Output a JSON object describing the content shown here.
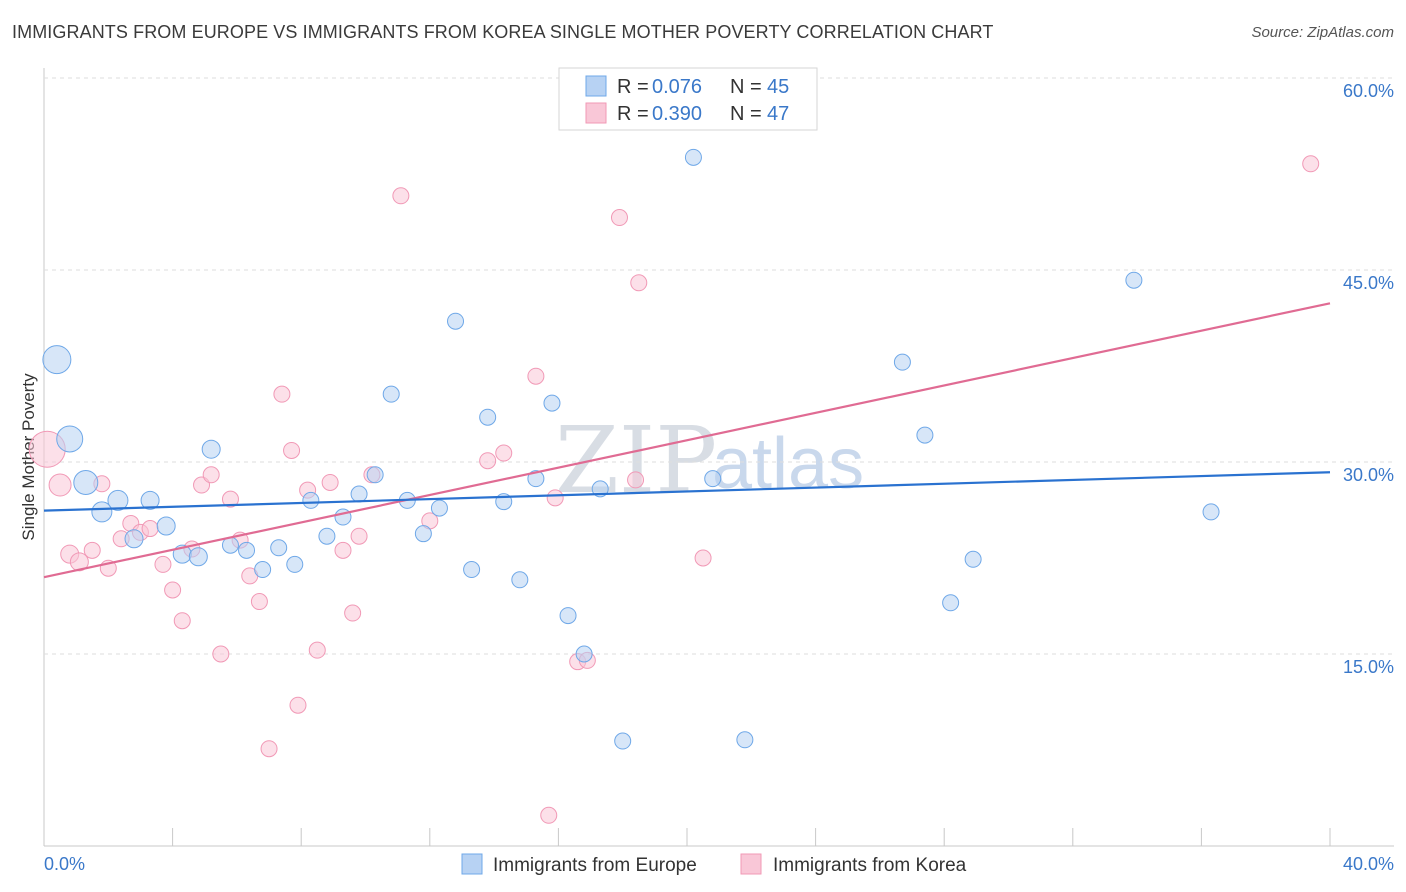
{
  "header": {
    "title": "IMMIGRANTS FROM EUROPE VS IMMIGRANTS FROM KOREA SINGLE MOTHER POVERTY CORRELATION CHART",
    "source": "Source: ZipAtlas.com"
  },
  "legend": {
    "r_label": "R =",
    "n_label": "N =",
    "europe": {
      "r": "0.076",
      "n": "45"
    },
    "korea": {
      "r": "0.390",
      "n": "47"
    }
  },
  "watermark": {
    "part1": "ZIP",
    "part2": "atlas"
  },
  "chart_data": {
    "type": "scatter",
    "title": "IMMIGRANTS FROM EUROPE VS IMMIGRANTS FROM KOREA SINGLE MOTHER POVERTY CORRELATION CHART",
    "ylabel": "Single Mother Poverty",
    "xlabel": "",
    "xlim": [
      0,
      40
    ],
    "ylim": [
      0,
      60
    ],
    "x_tick_labels": [
      "0.0%",
      "40.0%"
    ],
    "y_tick_labels": [
      "15.0%",
      "30.0%",
      "45.0%",
      "60.0%"
    ],
    "y_ticks": [
      15,
      30,
      45,
      60
    ],
    "grid": "horizontal dashed",
    "legend_position": "top-center",
    "colors": {
      "europe": "#6fa8e8",
      "korea": "#f199b6",
      "europe_line": "#2a72d0",
      "korea_line": "#e06b93"
    },
    "series": [
      {
        "name": "Immigrants from Europe",
        "trend": {
          "x": [
            0,
            40
          ],
          "y": [
            26.2,
            29.2
          ]
        },
        "points": [
          {
            "x": 0.4,
            "y": 38.0,
            "s": 14
          },
          {
            "x": 0.8,
            "y": 31.8,
            "s": 13
          },
          {
            "x": 1.3,
            "y": 28.4,
            "s": 12
          },
          {
            "x": 1.8,
            "y": 26.1,
            "s": 10
          },
          {
            "x": 2.3,
            "y": 27.0,
            "s": 10
          },
          {
            "x": 2.8,
            "y": 24.0,
            "s": 9
          },
          {
            "x": 3.3,
            "y": 27.0,
            "s": 9
          },
          {
            "x": 3.8,
            "y": 25.0,
            "s": 9
          },
          {
            "x": 4.3,
            "y": 22.8,
            "s": 9
          },
          {
            "x": 4.8,
            "y": 22.6,
            "s": 9
          },
          {
            "x": 5.2,
            "y": 31.0,
            "s": 9
          },
          {
            "x": 5.8,
            "y": 23.5,
            "s": 8
          },
          {
            "x": 6.3,
            "y": 23.1,
            "s": 8
          },
          {
            "x": 6.8,
            "y": 21.6,
            "s": 8
          },
          {
            "x": 7.3,
            "y": 23.3,
            "s": 8
          },
          {
            "x": 7.8,
            "y": 22.0,
            "s": 8
          },
          {
            "x": 8.3,
            "y": 27.0,
            "s": 8
          },
          {
            "x": 8.8,
            "y": 24.2,
            "s": 8
          },
          {
            "x": 9.3,
            "y": 25.7,
            "s": 8
          },
          {
            "x": 9.8,
            "y": 27.5,
            "s": 8
          },
          {
            "x": 10.3,
            "y": 29.0,
            "s": 8
          },
          {
            "x": 10.8,
            "y": 35.3,
            "s": 8
          },
          {
            "x": 11.3,
            "y": 27.0,
            "s": 8
          },
          {
            "x": 11.8,
            "y": 24.4,
            "s": 8
          },
          {
            "x": 12.3,
            "y": 26.4,
            "s": 8
          },
          {
            "x": 12.8,
            "y": 41.0,
            "s": 8
          },
          {
            "x": 13.3,
            "y": 21.6,
            "s": 8
          },
          {
            "x": 13.8,
            "y": 33.5,
            "s": 8
          },
          {
            "x": 14.3,
            "y": 26.9,
            "s": 8
          },
          {
            "x": 14.8,
            "y": 20.8,
            "s": 8
          },
          {
            "x": 15.3,
            "y": 28.7,
            "s": 8
          },
          {
            "x": 15.8,
            "y": 34.6,
            "s": 8
          },
          {
            "x": 16.3,
            "y": 18.0,
            "s": 8
          },
          {
            "x": 16.8,
            "y": 15.0,
            "s": 8
          },
          {
            "x": 17.3,
            "y": 27.9,
            "s": 8
          },
          {
            "x": 18.0,
            "y": 8.2,
            "s": 8
          },
          {
            "x": 20.2,
            "y": 53.8,
            "s": 8
          },
          {
            "x": 20.8,
            "y": 28.7,
            "s": 8
          },
          {
            "x": 21.8,
            "y": 8.3,
            "s": 8
          },
          {
            "x": 26.7,
            "y": 37.8,
            "s": 8
          },
          {
            "x": 27.4,
            "y": 32.1,
            "s": 8
          },
          {
            "x": 28.2,
            "y": 19.0,
            "s": 8
          },
          {
            "x": 28.9,
            "y": 22.4,
            "s": 8
          },
          {
            "x": 33.9,
            "y": 44.2,
            "s": 8
          },
          {
            "x": 36.3,
            "y": 26.1,
            "s": 8
          }
        ]
      },
      {
        "name": "Immigrants from Korea",
        "trend": {
          "x": [
            0,
            40
          ],
          "y": [
            21.0,
            42.4
          ]
        },
        "points": [
          {
            "x": 0.1,
            "y": 31.0,
            "s": 18
          },
          {
            "x": 0.5,
            "y": 28.2,
            "s": 11
          },
          {
            "x": 0.8,
            "y": 22.8,
            "s": 9
          },
          {
            "x": 1.1,
            "y": 22.2,
            "s": 9
          },
          {
            "x": 1.5,
            "y": 23.1,
            "s": 8
          },
          {
            "x": 1.8,
            "y": 28.3,
            "s": 8
          },
          {
            "x": 2.0,
            "y": 21.7,
            "s": 8
          },
          {
            "x": 2.4,
            "y": 24.0,
            "s": 8
          },
          {
            "x": 2.7,
            "y": 25.2,
            "s": 8
          },
          {
            "x": 3.0,
            "y": 24.5,
            "s": 8
          },
          {
            "x": 3.3,
            "y": 24.8,
            "s": 8
          },
          {
            "x": 3.7,
            "y": 22.0,
            "s": 8
          },
          {
            "x": 4.0,
            "y": 20.0,
            "s": 8
          },
          {
            "x": 4.3,
            "y": 17.6,
            "s": 8
          },
          {
            "x": 4.6,
            "y": 23.2,
            "s": 8
          },
          {
            "x": 4.9,
            "y": 28.2,
            "s": 8
          },
          {
            "x": 5.2,
            "y": 29.0,
            "s": 8
          },
          {
            "x": 5.5,
            "y": 15.0,
            "s": 8
          },
          {
            "x": 5.8,
            "y": 27.1,
            "s": 8
          },
          {
            "x": 6.1,
            "y": 23.9,
            "s": 8
          },
          {
            "x": 6.4,
            "y": 21.1,
            "s": 8
          },
          {
            "x": 6.7,
            "y": 19.1,
            "s": 8
          },
          {
            "x": 7.0,
            "y": 7.6,
            "s": 8
          },
          {
            "x": 7.4,
            "y": 35.3,
            "s": 8
          },
          {
            "x": 7.7,
            "y": 30.9,
            "s": 8
          },
          {
            "x": 7.9,
            "y": 11.0,
            "s": 8
          },
          {
            "x": 8.2,
            "y": 27.8,
            "s": 8
          },
          {
            "x": 8.5,
            "y": 15.3,
            "s": 8
          },
          {
            "x": 8.9,
            "y": 28.4,
            "s": 8
          },
          {
            "x": 9.3,
            "y": 23.1,
            "s": 8
          },
          {
            "x": 9.6,
            "y": 18.2,
            "s": 8
          },
          {
            "x": 9.8,
            "y": 24.2,
            "s": 8
          },
          {
            "x": 10.2,
            "y": 29.0,
            "s": 8
          },
          {
            "x": 11.1,
            "y": 50.8,
            "s": 8
          },
          {
            "x": 12.0,
            "y": 25.4,
            "s": 8
          },
          {
            "x": 13.8,
            "y": 30.1,
            "s": 8
          },
          {
            "x": 14.3,
            "y": 30.7,
            "s": 8
          },
          {
            "x": 15.3,
            "y": 36.7,
            "s": 8
          },
          {
            "x": 15.7,
            "y": 2.4,
            "s": 8
          },
          {
            "x": 15.9,
            "y": 27.2,
            "s": 8
          },
          {
            "x": 16.6,
            "y": 14.4,
            "s": 8
          },
          {
            "x": 16.9,
            "y": 14.5,
            "s": 8
          },
          {
            "x": 17.9,
            "y": 49.1,
            "s": 8
          },
          {
            "x": 18.4,
            "y": 28.6,
            "s": 8
          },
          {
            "x": 18.5,
            "y": 44.0,
            "s": 8
          },
          {
            "x": 20.5,
            "y": 22.5,
            "s": 8
          },
          {
            "x": 39.4,
            "y": 53.3,
            "s": 8
          }
        ]
      }
    ]
  }
}
